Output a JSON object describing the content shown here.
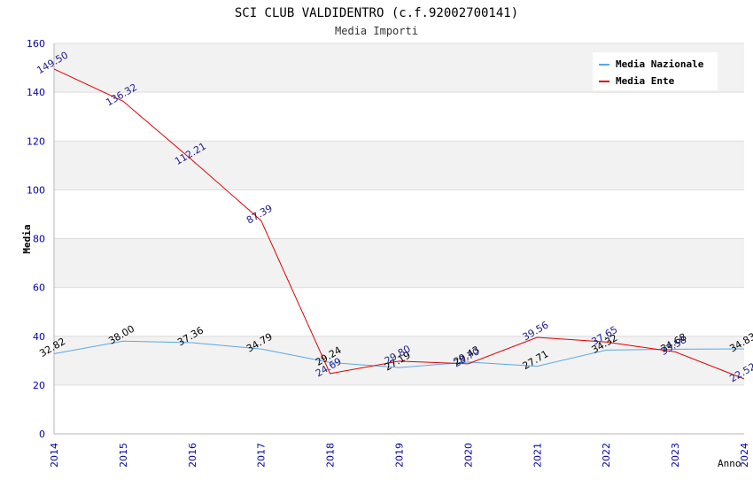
{
  "chart_data": {
    "type": "line",
    "title": "SCI CLUB VALDIDENTRO (c.f.92002700141)",
    "subtitle": "Media Importi",
    "xlabel": "Anno",
    "ylabel": "Media",
    "categories": [
      "2014",
      "2015",
      "2016",
      "2017",
      "2018",
      "2019",
      "2020",
      "2021",
      "2022",
      "2023",
      "2024"
    ],
    "ylim": [
      0,
      160
    ],
    "yticks": [
      "0",
      "20",
      "40",
      "60",
      "80",
      "100",
      "120",
      "140",
      "160"
    ],
    "grid": true,
    "legend_position": "top-right",
    "series": [
      {
        "name": "Media Nazionale",
        "color": "#5ba7e6",
        "label_color": "#000000",
        "values": [
          32.82,
          38.0,
          37.36,
          34.79,
          29.24,
          27.19,
          29.43,
          27.71,
          34.32,
          34.68,
          34.83
        ],
        "labels": [
          "32.82",
          "38.00",
          "37.36",
          "34.79",
          "29.24",
          "27.19",
          "29.43",
          "27.71",
          "34.32",
          "34.68",
          "34.83"
        ]
      },
      {
        "name": "Media Ente",
        "color": "#e00000",
        "label_color": "#1a1a8c",
        "values": [
          149.5,
          136.32,
          112.21,
          87.39,
          24.69,
          29.8,
          28.7,
          39.56,
          37.65,
          33.58,
          22.52
        ],
        "labels": [
          "149.50",
          "136.32",
          "112.21",
          "87.39",
          "24.69",
          "29.80",
          "28.70",
          "39.56",
          "37.65",
          "33.58",
          "22.52"
        ]
      }
    ]
  }
}
